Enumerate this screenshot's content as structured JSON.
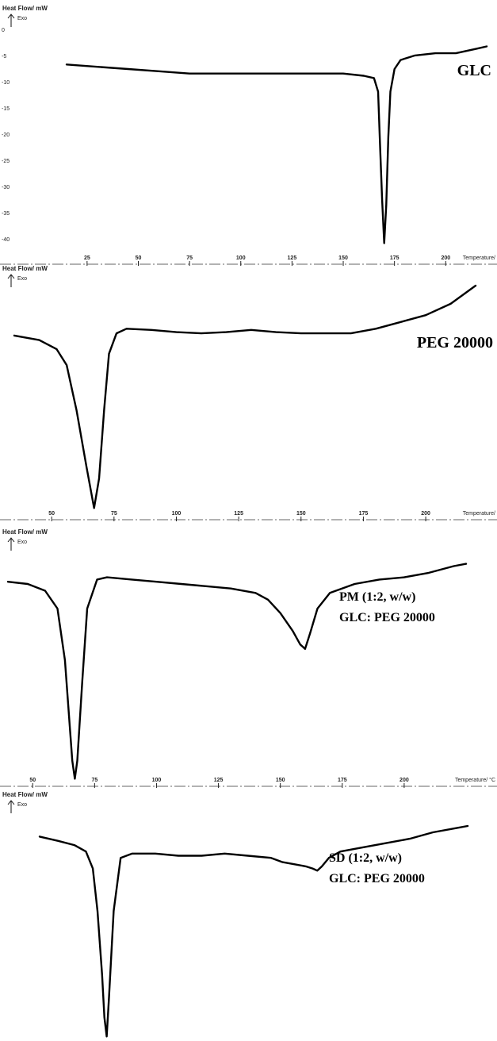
{
  "chart_data": [
    {
      "type": "line",
      "title": "",
      "ylabel": "Heat Flow/ mW",
      "exo_label": "Exo",
      "xlabel": "Temperature/",
      "sample_label": [
        "GLC"
      ],
      "x_ticks": [
        25,
        50,
        75,
        100,
        125,
        150,
        175,
        200
      ],
      "y_ticks": [
        "0",
        "-5",
        "-10",
        "-15",
        "-20",
        "-25",
        "-30",
        "-35",
        "-40"
      ],
      "xlim": [
        15,
        220
      ],
      "ylim": [
        0,
        100
      ],
      "series": [
        {
          "x": [
            15,
            30,
            45,
            60,
            75,
            90,
            105,
            120,
            135,
            150,
            160,
            165,
            167,
            168,
            169,
            170,
            171,
            172,
            173,
            175,
            178,
            185,
            195,
            205,
            215,
            220
          ],
          "y": [
            18,
            19,
            20,
            21,
            22,
            22,
            22,
            22,
            22,
            22,
            23,
            24,
            30,
            55,
            78,
            97,
            80,
            50,
            30,
            20,
            16,
            14,
            13,
            13,
            11,
            10
          ]
        }
      ]
    },
    {
      "type": "line",
      "title": "",
      "ylabel": "Heat Flow/ mW",
      "exo_label": "Exo",
      "xlabel": "Temperature/",
      "sample_label": [
        "PEG 20000"
      ],
      "x_ticks": [
        50,
        75,
        100,
        125,
        150,
        175,
        200
      ],
      "y_ticks": [],
      "xlim": [
        35,
        220
      ],
      "ylim": [
        0,
        100
      ],
      "series": [
        {
          "x": [
            35,
            45,
            52,
            56,
            60,
            64,
            67,
            69,
            71,
            73,
            76,
            80,
            90,
            100,
            110,
            120,
            130,
            140,
            150,
            160,
            170,
            180,
            190,
            200,
            210,
            220
          ],
          "y": [
            22,
            24,
            28,
            35,
            55,
            80,
            98,
            85,
            55,
            30,
            21,
            19,
            19.5,
            20.5,
            21,
            20.5,
            19.5,
            20.5,
            21,
            21,
            21,
            19,
            16,
            13,
            8,
            0
          ]
        }
      ]
    },
    {
      "type": "line",
      "title": "",
      "ylabel": "Heat Flow/ mW",
      "exo_label": "Exo",
      "xlabel": "Temperature/ °C",
      "sample_label": [
        "PM (1:2, w/w)",
        "GLC: PEG 20000"
      ],
      "x_ticks": [
        50,
        75,
        100,
        125,
        150,
        175,
        200
      ],
      "y_ticks": [],
      "xlim": [
        40,
        225
      ],
      "ylim": [
        0,
        100
      ],
      "series": [
        {
          "x": [
            40,
            48,
            55,
            60,
            63,
            65,
            66,
            67,
            68,
            70,
            72,
            76,
            80,
            90,
            100,
            110,
            120,
            130,
            140,
            145,
            150,
            155,
            158,
            160,
            162,
            165,
            170,
            180,
            190,
            200,
            210,
            220,
            225
          ],
          "y": [
            10,
            11,
            14,
            22,
            45,
            75,
            90,
            98,
            90,
            55,
            22,
            9,
            8,
            9,
            10,
            11,
            12,
            13,
            15,
            18,
            24,
            32,
            38,
            40,
            33,
            22,
            15,
            11,
            9,
            8,
            6,
            3,
            2
          ]
        }
      ]
    },
    {
      "type": "line",
      "title": "",
      "ylabel": "Heat Flow/ mW",
      "exo_label": "Exo",
      "xlabel": "Temperature/ °C",
      "sample_label": [
        "SD (1:2, w/w)",
        "GLC: PEG 20000"
      ],
      "x_ticks": [
        50,
        75,
        100,
        125,
        150,
        175,
        200
      ],
      "y_ticks": [],
      "xlim": [
        40,
        225
      ],
      "ylim": [
        0,
        100
      ],
      "series": [
        {
          "x": [
            40,
            48,
            55,
            60,
            63,
            65,
            67,
            68,
            69,
            70,
            72,
            75,
            80,
            90,
            100,
            110,
            120,
            130,
            140,
            145,
            150,
            155,
            158,
            160,
            162,
            165,
            170,
            180,
            190,
            200,
            210,
            220,
            225
          ],
          "y": [
            5,
            7,
            9,
            12,
            20,
            40,
            70,
            90,
            99,
            80,
            40,
            15,
            13,
            13,
            14,
            14,
            13,
            14,
            15,
            17,
            18,
            19,
            20,
            21,
            19,
            15,
            12,
            10,
            8,
            6,
            3,
            1,
            0
          ]
        }
      ]
    }
  ]
}
